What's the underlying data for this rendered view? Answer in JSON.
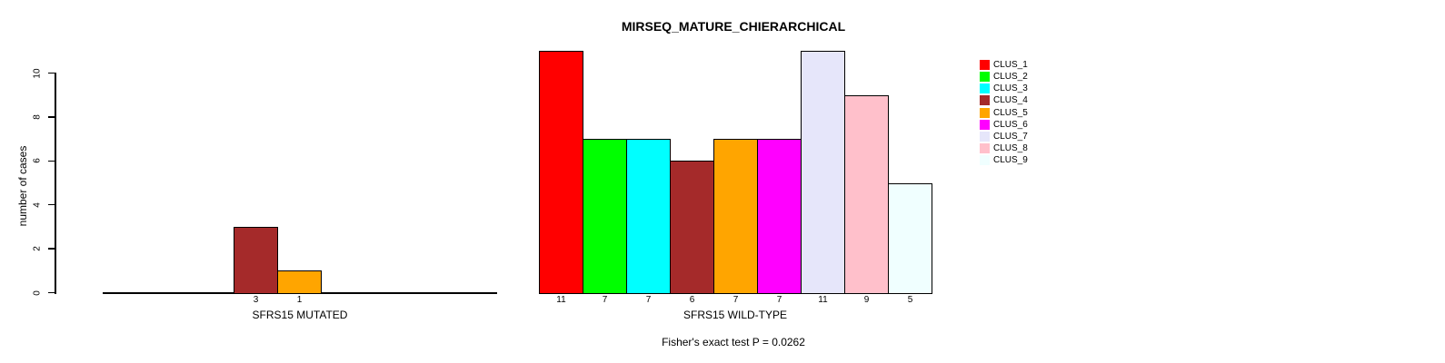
{
  "chart_data": {
    "type": "bar",
    "title": "MIRSEQ_MATURE_CHIERARCHICAL",
    "ylabel": "number of cases",
    "ylim": [
      0,
      11.6
    ],
    "yticks": [
      0,
      2,
      4,
      6,
      8,
      10
    ],
    "grid": false,
    "legend_position": "right-top",
    "annotation": "Fisher's exact test P = 0.0262",
    "clusters": [
      {
        "name": "CLUS_1",
        "color": "#FF0000"
      },
      {
        "name": "CLUS_2",
        "color": "#00FF00"
      },
      {
        "name": "CLUS_3",
        "color": "#00FFFF"
      },
      {
        "name": "CLUS_4",
        "color": "#A52A2A"
      },
      {
        "name": "CLUS_5",
        "color": "#FFA500"
      },
      {
        "name": "CLUS_6",
        "color": "#FF00FF"
      },
      {
        "name": "CLUS_7",
        "color": "#E6E6FA"
      },
      {
        "name": "CLUS_8",
        "color": "#FFC0CB"
      },
      {
        "name": "CLUS_9",
        "color": "#F0FFFF"
      }
    ],
    "groups": [
      {
        "label": "SFRS15 MUTATED",
        "values": [
          0,
          0,
          0,
          3,
          1,
          0,
          0,
          0,
          0
        ]
      },
      {
        "label": "SFRS15 WILD-TYPE",
        "values": [
          11,
          7,
          7,
          6,
          7,
          7,
          11,
          9,
          5
        ]
      }
    ]
  }
}
